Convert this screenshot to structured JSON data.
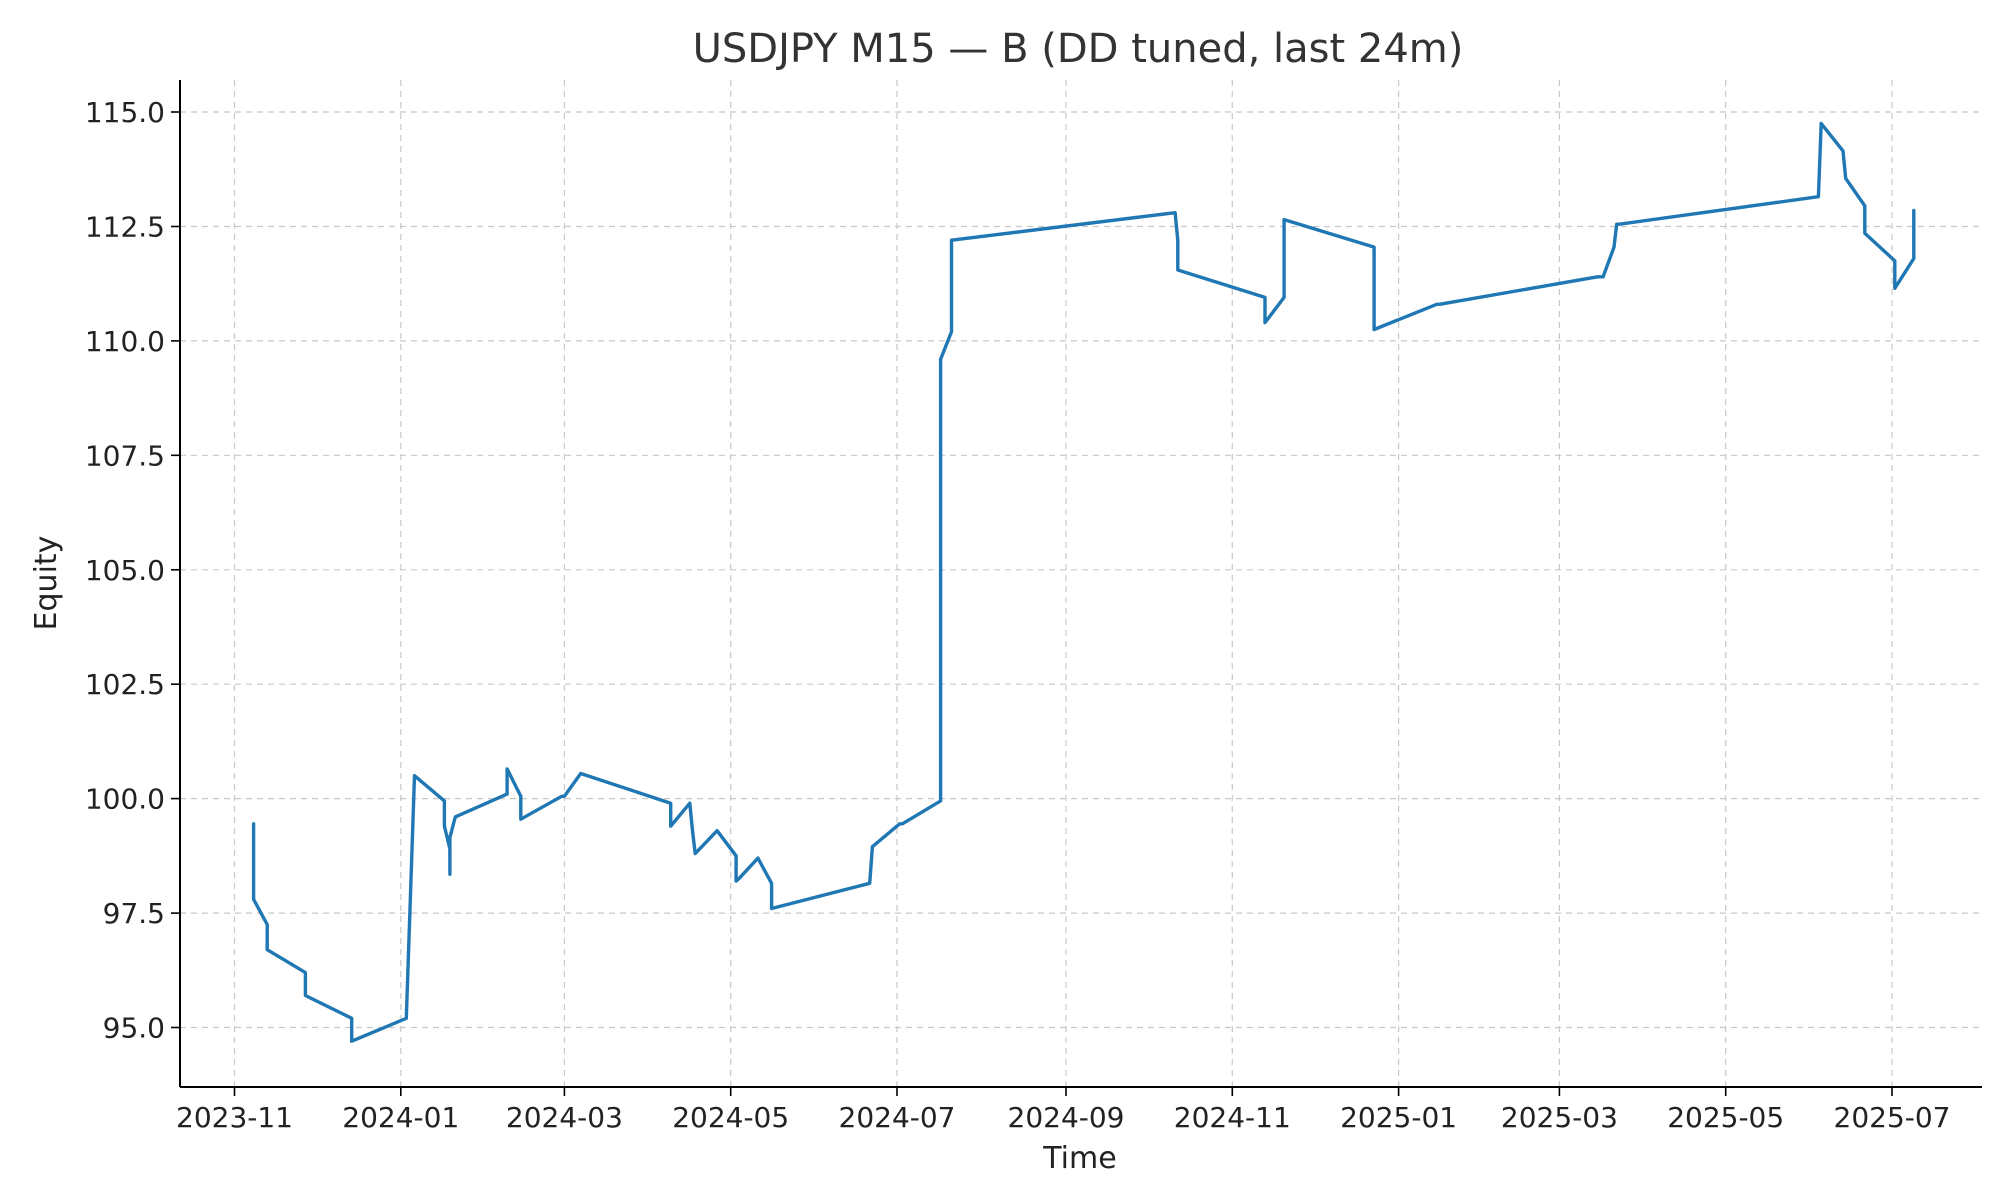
{
  "chart_data": {
    "type": "line",
    "title": "USDJPY M15 — B (DD tuned, last 24m)",
    "xlabel": "Time",
    "ylabel": "Equity",
    "ylim": [
      93.7,
      115.7
    ],
    "xlim": [
      "2023-10-12",
      "2025-08-03"
    ],
    "grid": true,
    "xticks": [
      "2023-11",
      "2024-01",
      "2024-03",
      "2024-05",
      "2024-07",
      "2024-09",
      "2024-11",
      "2025-01",
      "2025-03",
      "2025-05",
      "2025-07"
    ],
    "yticks": [
      "95.0",
      "97.5",
      "100.0",
      "102.5",
      "105.0",
      "107.5",
      "110.0",
      "112.5",
      "115.0"
    ],
    "series": [
      {
        "name": "Equity",
        "color": "#1f77b4",
        "x": [
          "2023-11-08",
          "2023-11-08",
          "2023-11-13",
          "2023-11-13",
          "2023-11-27",
          "2023-11-27",
          "2023-12-14",
          "2023-12-14",
          "2024-01-03",
          "2024-01-06",
          "2024-01-17",
          "2024-01-17",
          "2024-01-19",
          "2024-01-19",
          "2024-01-19",
          "2024-01-21",
          "2024-02-09",
          "2024-02-09",
          "2024-02-14",
          "2024-02-14",
          "2024-02-29",
          "2024-03-01",
          "2024-03-07",
          "2024-04-09",
          "2024-04-09",
          "2024-04-16",
          "2024-04-17",
          "2024-04-18",
          "2024-04-26",
          "2024-05-03",
          "2024-05-03",
          "2024-05-04",
          "2024-05-11",
          "2024-05-16",
          "2024-05-16",
          "2024-06-21",
          "2024-06-22",
          "2024-07-02",
          "2024-07-03",
          "2024-07-17",
          "2024-07-17",
          "2024-07-21",
          "2024-07-21",
          "2024-10-11",
          "2024-10-12",
          "2024-10-12",
          "2024-11-13",
          "2024-11-13",
          "2024-11-20",
          "2024-11-20",
          "2024-12-23",
          "2024-12-23",
          "2025-01-15",
          "2025-01-16",
          "2025-03-15",
          "2025-03-17",
          "2025-03-21",
          "2025-03-22",
          "2025-03-23",
          "2025-06-04",
          "2025-06-05",
          "2025-06-13",
          "2025-06-14",
          "2025-06-21",
          "2025-06-21",
          "2025-07-02",
          "2025-07-02",
          "2025-07-09",
          "2025-07-09"
        ],
        "values": [
          99.45,
          97.8,
          97.25,
          96.7,
          96.2,
          95.7,
          95.2,
          94.7,
          95.2,
          100.5,
          99.95,
          99.4,
          98.9,
          98.35,
          99.15,
          99.6,
          100.1,
          100.65,
          100.05,
          99.55,
          100.05,
          100.05,
          100.55,
          99.9,
          99.4,
          99.9,
          99.3,
          98.8,
          99.3,
          98.75,
          98.2,
          98.25,
          98.7,
          98.15,
          97.6,
          98.15,
          98.95,
          99.45,
          99.45,
          99.95,
          109.6,
          110.2,
          112.2,
          112.8,
          112.2,
          111.55,
          110.95,
          110.4,
          110.95,
          112.65,
          112.05,
          110.25,
          110.8,
          110.8,
          111.4,
          111.4,
          112.05,
          112.55,
          112.55,
          113.15,
          114.75,
          114.15,
          113.55,
          112.95,
          112.35,
          111.75,
          111.15,
          111.8,
          112.85
        ]
      }
    ]
  }
}
